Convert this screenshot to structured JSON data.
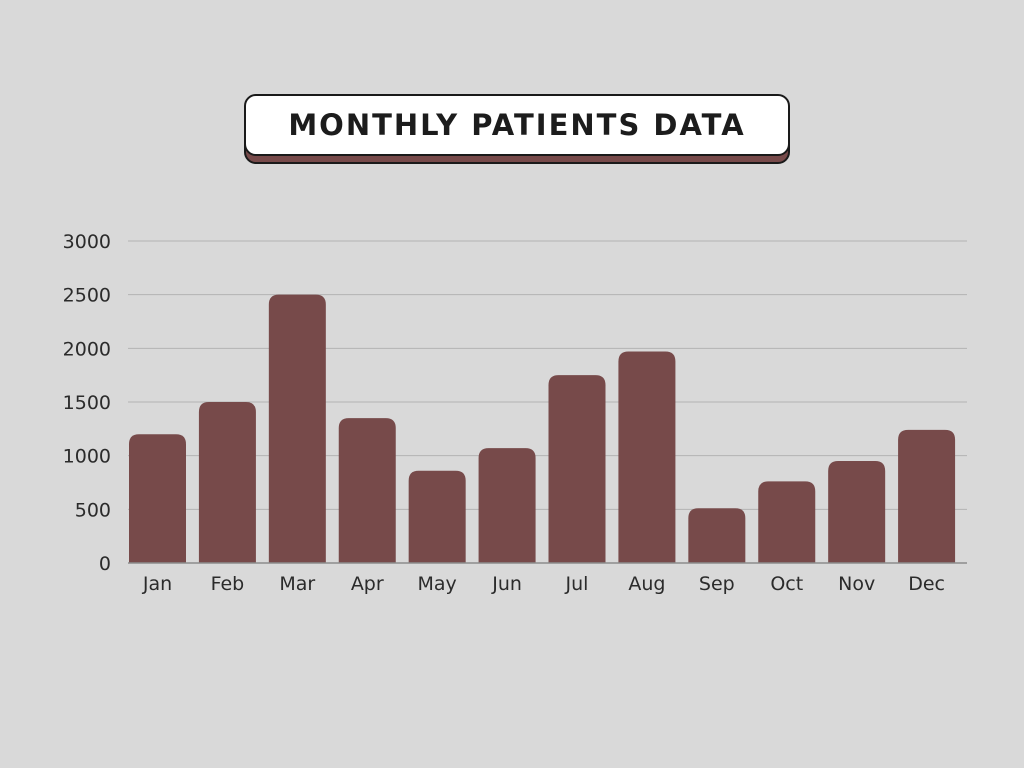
{
  "chart_data": {
    "type": "bar",
    "title": "MONTHLY PATIENTS DATA",
    "xlabel": "",
    "ylabel": "",
    "categories": [
      "Jan",
      "Feb",
      "Mar",
      "Apr",
      "May",
      "Jun",
      "Jul",
      "Aug",
      "Sep",
      "Oct",
      "Nov",
      "Dec"
    ],
    "values": [
      1200,
      1500,
      2500,
      1350,
      860,
      1070,
      1750,
      1970,
      510,
      760,
      950,
      1240
    ],
    "ylim": [
      0,
      3000
    ],
    "yticks": [
      "0",
      "500",
      "1000",
      "1500",
      "2000",
      "2500",
      "3000"
    ],
    "grid": true,
    "legend": "none",
    "colors": {
      "bar": "#774a4a",
      "gridline": "#b3b3b3",
      "axis": "#8c8c8c",
      "background": "#d9d9d9"
    }
  }
}
